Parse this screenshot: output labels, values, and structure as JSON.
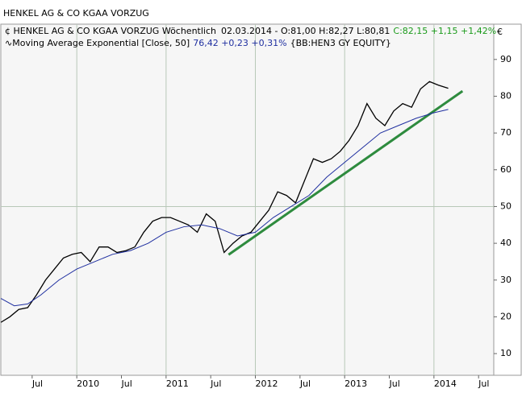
{
  "chart_data": {
    "type": "line",
    "title": "HENKEL AG & CO KGAA VORZUG",
    "currency": "€",
    "series": [
      {
        "name": "HENKEL AG & CO KGAA VORZUG Wöchentlich",
        "color": "#000000",
        "legend_info": "02.03.2014 - O:81,00 H:82,27 L:80,81",
        "legend_change": "C:82,15 +1,15 +1,42%",
        "legend_change_color": "#1a9a1a",
        "x": [
          2009.15,
          2009.25,
          2009.35,
          2009.45,
          2009.55,
          2009.65,
          2009.75,
          2009.85,
          2009.95,
          2010.05,
          2010.15,
          2010.25,
          2010.35,
          2010.45,
          2010.55,
          2010.65,
          2010.75,
          2010.85,
          2010.95,
          2011.05,
          2011.15,
          2011.25,
          2011.35,
          2011.45,
          2011.55,
          2011.65,
          2011.75,
          2011.85,
          2011.95,
          2012.05,
          2012.15,
          2012.25,
          2012.35,
          2012.45,
          2012.55,
          2012.65,
          2012.75,
          2012.85,
          2012.95,
          2013.05,
          2013.15,
          2013.25,
          2013.35,
          2013.45,
          2013.55,
          2013.65,
          2013.75,
          2013.85,
          2013.95,
          2014.05,
          2014.16
        ],
        "values": [
          18.5,
          20,
          22,
          22.5,
          26,
          30,
          33,
          36,
          37,
          37.5,
          35,
          39,
          39,
          37.5,
          38,
          39,
          43,
          46,
          47,
          47,
          46,
          45,
          43,
          48,
          46,
          37.5,
          40,
          42,
          43,
          46,
          49,
          54,
          53,
          51,
          57,
          63,
          62,
          63,
          65,
          68,
          72,
          78,
          74,
          72,
          76,
          78,
          77,
          82,
          84,
          83,
          82.15
        ]
      },
      {
        "name": "Moving Average Exponential [Close, 50]",
        "color": "#1f2fa0",
        "legend_change": "76,42 +0,23 +0,31%",
        "legend_source": "{BB:HEN3 GY EQUITY}",
        "x": [
          2009.15,
          2009.3,
          2009.45,
          2009.6,
          2009.8,
          2010.0,
          2010.2,
          2010.4,
          2010.6,
          2010.8,
          2011.0,
          2011.2,
          2011.4,
          2011.6,
          2011.8,
          2012.0,
          2012.2,
          2012.4,
          2012.6,
          2012.8,
          2013.0,
          2013.2,
          2013.4,
          2013.6,
          2013.8,
          2014.0,
          2014.16
        ],
        "values": [
          25,
          23,
          23.5,
          26,
          30,
          33,
          35,
          37,
          38,
          40,
          43,
          44.5,
          45,
          44,
          42,
          43,
          47,
          50,
          53,
          58,
          62,
          66,
          70,
          72,
          74,
          75.5,
          76.42
        ]
      }
    ],
    "trendline": {
      "color": "#2e8b3e",
      "x": [
        2011.7,
        2014.32
      ],
      "values": [
        36.9,
        81.4
      ]
    },
    "xlim": [
      2009.149,
      2014.67
    ],
    "xticks": [
      {
        "value": 2009.5,
        "label": "Jul"
      },
      2010,
      {
        "value": 2010.5,
        "label": "Jul"
      },
      2011,
      {
        "value": 2011.5,
        "label": "Jul"
      },
      2012,
      {
        "value": 2012.5,
        "label": "Jul"
      },
      2013,
      {
        "value": 2013.5,
        "label": "Jul"
      },
      2014,
      {
        "value": 2014.5,
        "label": "Jul"
      }
    ],
    "xgrid": [
      2010,
      2011,
      2012,
      2013,
      2014
    ],
    "ylim": [
      4.1,
      99.6
    ],
    "yticks": [
      10,
      20,
      30,
      40,
      50,
      60,
      70,
      80,
      90
    ],
    "ygrid": [
      50
    ]
  }
}
